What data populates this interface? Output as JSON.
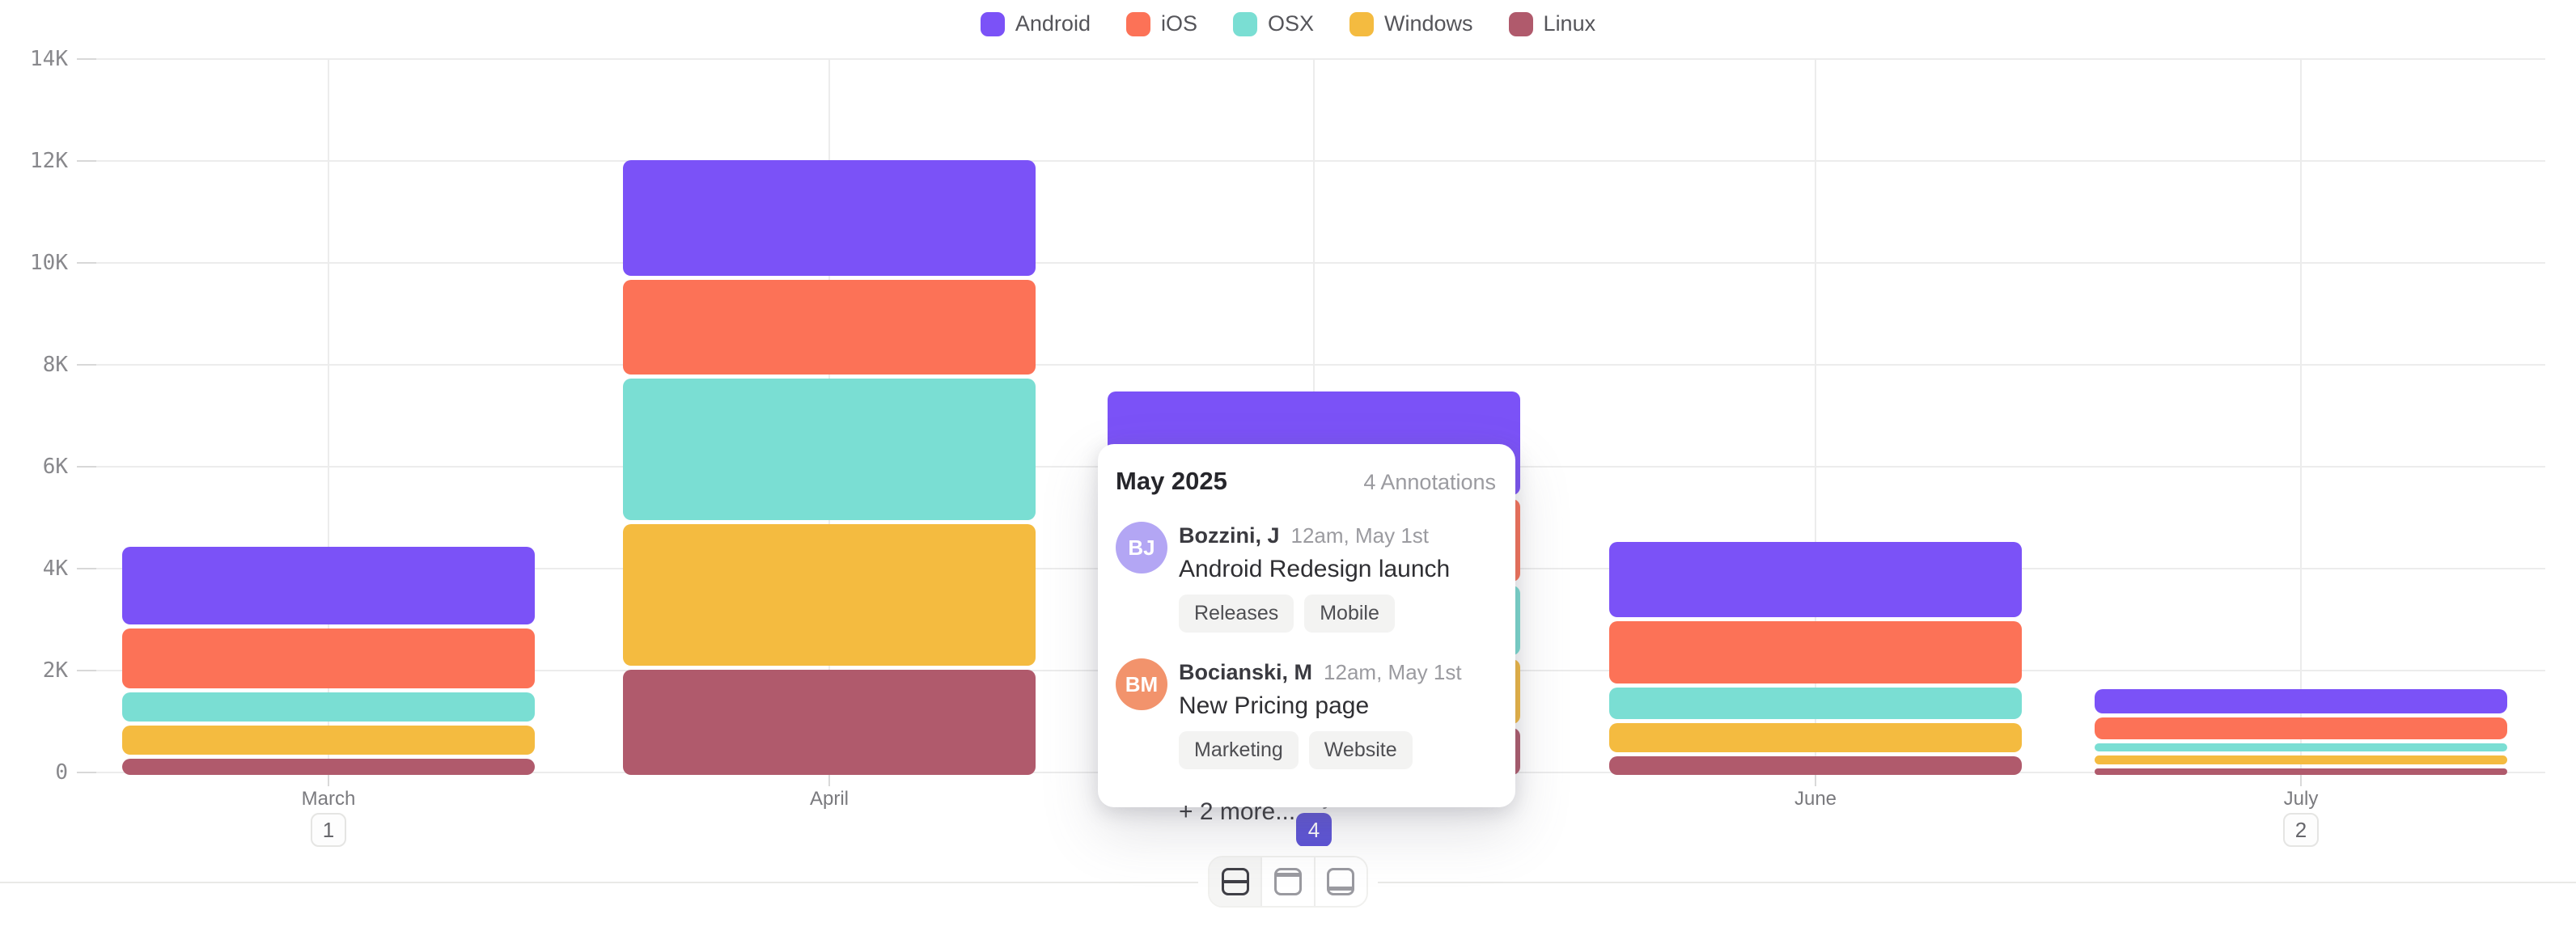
{
  "chart_data": {
    "type": "bar",
    "stacked": true,
    "title": "",
    "xlabel": "",
    "ylabel": "",
    "categories": [
      "March",
      "April",
      "May",
      "June",
      "July"
    ],
    "series": [
      {
        "name": "Android",
        "color": "#7B52F7",
        "values": [
          1600,
          2350,
          2100,
          1550,
          550
        ]
      },
      {
        "name": "iOS",
        "color": "#FC7257",
        "values": [
          1250,
          1950,
          1700,
          1300,
          500
        ]
      },
      {
        "name": "OSX",
        "color": "#7ADED3",
        "values": [
          650,
          2850,
          1450,
          700,
          250
        ]
      },
      {
        "name": "Windows",
        "color": "#F4BB40",
        "values": [
          650,
          2850,
          1350,
          650,
          250
        ]
      },
      {
        "name": "Linux",
        "color": "#B05A6C",
        "values": [
          400,
          2150,
          1000,
          450,
          150
        ]
      }
    ],
    "y_ticks": [
      "0",
      "2K",
      "4K",
      "6K",
      "8K",
      "10K",
      "12K",
      "14K"
    ],
    "ylim": [
      0,
      14000
    ],
    "grid": true,
    "legend_position": "top",
    "annotation_counts": {
      "March": "1",
      "May": "4",
      "July": "2"
    },
    "active_month": "May",
    "active_badge_color": "#5C52D6"
  },
  "popup": {
    "title": "May 2025",
    "count_label": "4 Annotations",
    "entries": [
      {
        "initials": "BJ",
        "avatar_color": "#B3A6F4",
        "author": "Bozzini, J",
        "time": "12am, May 1st",
        "title": "Android Redesign launch",
        "tags": [
          "Releases",
          "Mobile"
        ]
      },
      {
        "initials": "BM",
        "avatar_color": "#F2936C",
        "author": "Bocianski, M",
        "time": "12am, May 1st",
        "title": "New Pricing page",
        "tags": [
          "Marketing",
          "Website"
        ]
      }
    ],
    "more_label": "+ 2 more..."
  },
  "layout_switcher": {
    "options": [
      {
        "name": "split-horizontal",
        "active": true
      },
      {
        "name": "header-top",
        "active": false
      },
      {
        "name": "footer-bottom",
        "active": false
      }
    ]
  }
}
